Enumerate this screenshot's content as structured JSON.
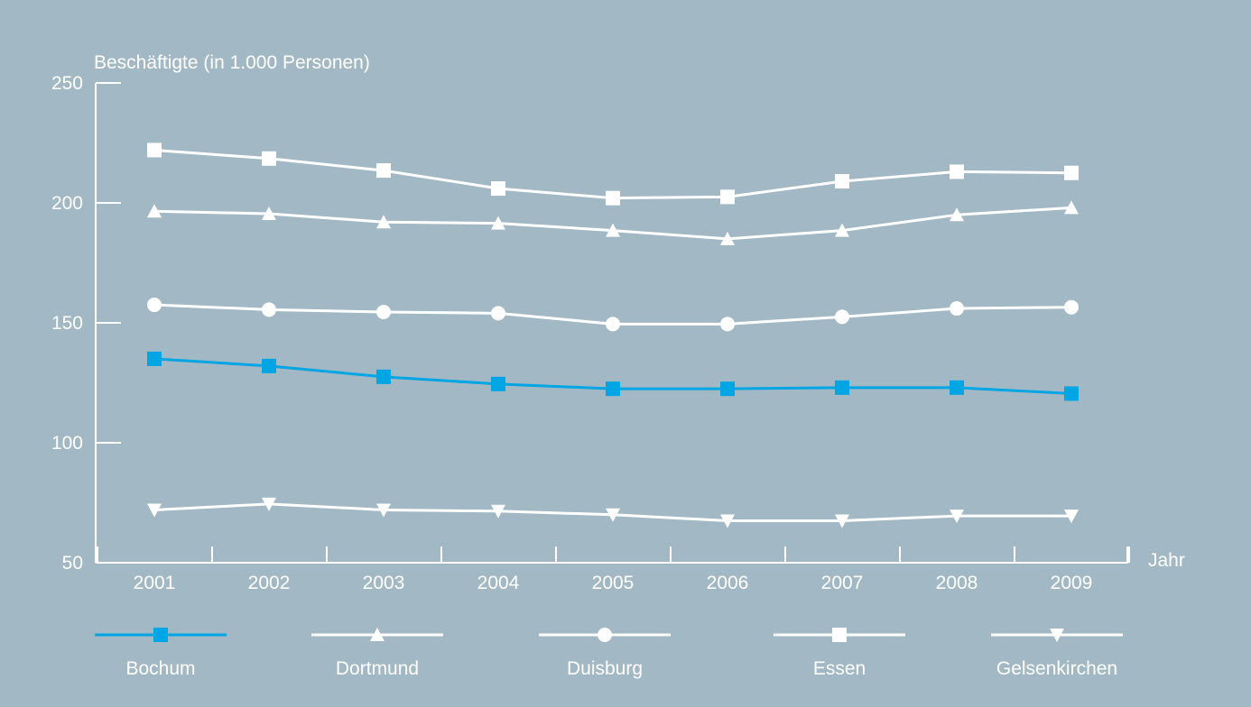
{
  "chart_data": {
    "type": "line",
    "title": "",
    "ylabel": "Beschäftigte (in 1.000 Personen)",
    "xlabel": "Jahr",
    "ylim": [
      50,
      250
    ],
    "yticks": [
      "50",
      "100",
      "150",
      "200",
      "250"
    ],
    "categories": [
      "2001",
      "2002",
      "2003",
      "2004",
      "2005",
      "2006",
      "2007",
      "2008",
      "2009"
    ],
    "grid": false,
    "legend_position": "bottom",
    "series": [
      {
        "name": "Bochum",
        "marker": "square",
        "color": "#00a5e3",
        "values": [
          135,
          132,
          127.5,
          124.5,
          122.5,
          122.5,
          123,
          123,
          120.5
        ]
      },
      {
        "name": "Dortmund",
        "marker": "triangle-up",
        "color": "#ffffff",
        "values": [
          196.5,
          195.5,
          192,
          191.5,
          188.5,
          185,
          188.5,
          195,
          198
        ]
      },
      {
        "name": "Duisburg",
        "marker": "circle",
        "color": "#ffffff",
        "values": [
          157.5,
          155.5,
          154.5,
          154,
          149.5,
          149.5,
          152.5,
          156,
          156.5
        ]
      },
      {
        "name": "Essen",
        "marker": "square",
        "color": "#ffffff",
        "values": [
          222,
          218.5,
          213.5,
          206,
          202,
          202.5,
          209,
          213,
          212.5
        ]
      },
      {
        "name": "Gelsenkirchen",
        "marker": "triangle-down",
        "color": "#ffffff",
        "values": [
          72,
          74.5,
          72,
          71.5,
          70,
          67.5,
          67.5,
          69.5,
          69.5
        ]
      }
    ]
  },
  "colors": {
    "background": "#a2b8c4",
    "axis": "#ffffff",
    "accent": "#00a5e3"
  }
}
